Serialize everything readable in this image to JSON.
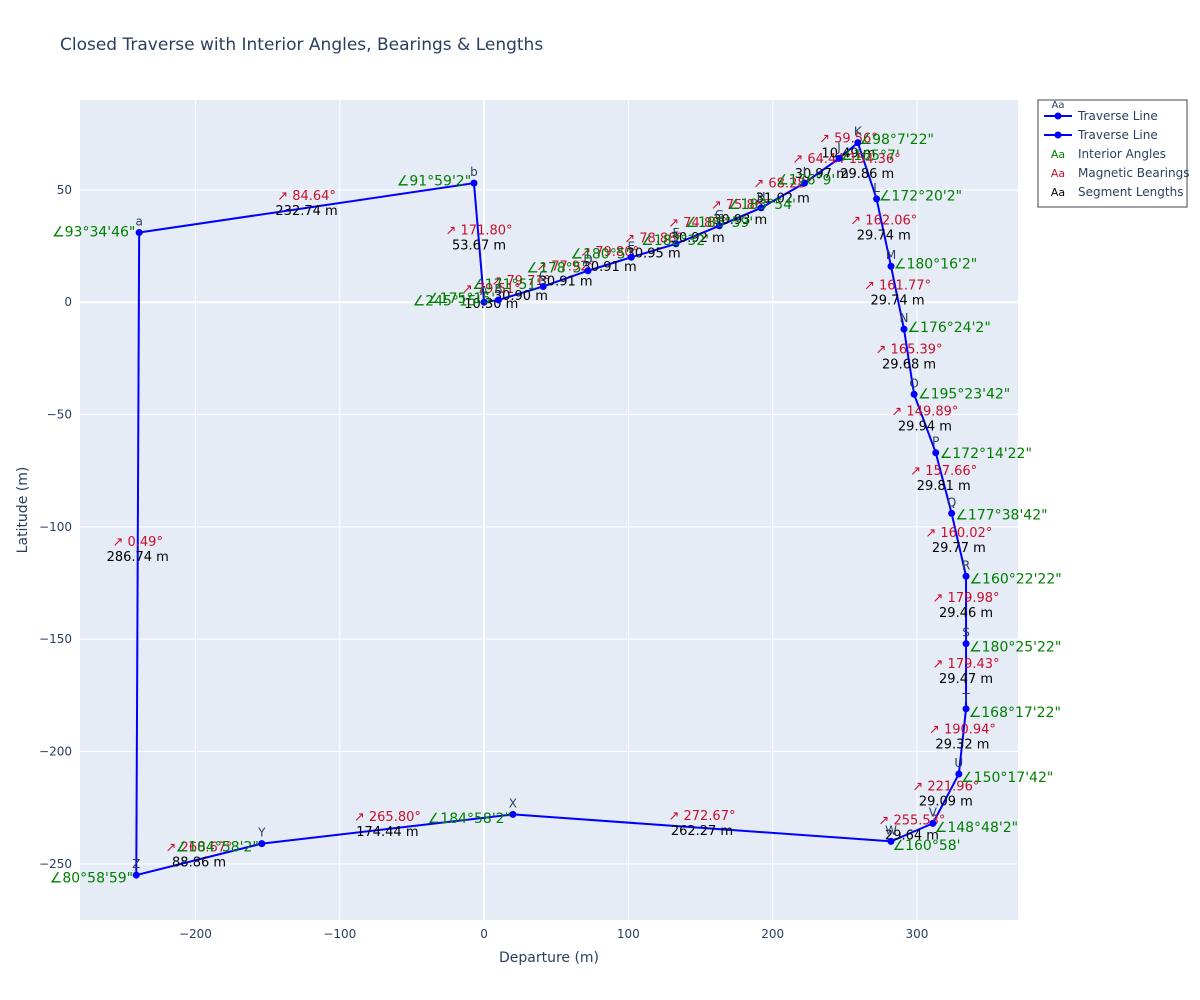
{
  "chart_data": {
    "type": "line",
    "title": "Closed Traverse with Interior Angles, Bearings & Lengths",
    "xlabel": "Departure (m)",
    "ylabel": "Latitude (m)",
    "xlim": [
      -280,
      370
    ],
    "ylim": [
      -275,
      90
    ],
    "xticks": [
      -200,
      -100,
      0,
      100,
      200,
      300
    ],
    "yticks": [
      -250,
      -200,
      -150,
      -100,
      -50,
      0,
      50
    ],
    "xtick_labels": [
      "−200",
      "−100",
      "0",
      "100",
      "200",
      "300"
    ],
    "ytick_labels": [
      "−250",
      "−200",
      "−150",
      "−100",
      "−50",
      "0",
      "50"
    ],
    "grid": true,
    "legend_position": "top-right",
    "legend": {
      "group_marker": "Aa",
      "entries": [
        {
          "label": "Traverse Line",
          "kind": "line",
          "color": "#0000ff"
        },
        {
          "label": "Traverse Line",
          "kind": "line",
          "color": "#0000ff"
        },
        {
          "label": "Interior Angles",
          "kind": "text",
          "marker": "Aa",
          "color": "#008000"
        },
        {
          "label": "Magnetic Bearings",
          "kind": "text",
          "marker": "Aa",
          "color": "#c8102e"
        },
        {
          "label": "Segment Lengths",
          "kind": "text",
          "marker": "Aa",
          "color": "#000000"
        }
      ]
    },
    "line_color": "#0000ff",
    "points": [
      {
        "name": "A",
        "x": 0,
        "y": 0,
        "angle": "∠245°15'"
      },
      {
        "name": "B",
        "x": 10,
        "y": 1,
        "angle": "∠175°15'"
      },
      {
        "name": "C",
        "x": 41,
        "y": 7,
        "angle": "∠171°51'"
      },
      {
        "name": "D",
        "x": 72,
        "y": 14,
        "angle": "∠178°5'"
      },
      {
        "name": "E",
        "x": 102,
        "y": 20,
        "angle": "∠180°5'"
      },
      {
        "name": "F",
        "x": 133,
        "y": 26,
        "angle": "∠182°32'"
      },
      {
        "name": "G",
        "x": 163,
        "y": 34,
        "angle": "∠186°59'"
      },
      {
        "name": "H",
        "x": 192,
        "y": 42,
        "angle": "∠183°54'"
      },
      {
        "name": "I",
        "x": 222,
        "y": 53,
        "angle": "∠176°9'"
      },
      {
        "name": "J",
        "x": 246,
        "y": 64,
        "angle": "∠165°7'"
      },
      {
        "name": "K",
        "x": 259,
        "y": 71,
        "angle": "∠98°7'22\""
      },
      {
        "name": "L",
        "x": 272,
        "y": 46,
        "angle": "∠172°20'2\""
      },
      {
        "name": "M",
        "x": 282,
        "y": 16,
        "angle": "∠180°16'2\""
      },
      {
        "name": "N",
        "x": 291,
        "y": -12,
        "angle": "∠176°24'2\""
      },
      {
        "name": "O",
        "x": 298,
        "y": -41,
        "angle": "∠195°23'42\""
      },
      {
        "name": "P",
        "x": 313,
        "y": -67,
        "angle": "∠172°14'22\""
      },
      {
        "name": "Q",
        "x": 324,
        "y": -94,
        "angle": "∠177°38'42\""
      },
      {
        "name": "R",
        "x": 334,
        "y": -122,
        "angle": "∠160°22'22\""
      },
      {
        "name": "S",
        "x": 334,
        "y": -152,
        "angle": "∠180°25'22\""
      },
      {
        "name": "T",
        "x": 334,
        "y": -181,
        "angle": "∠168°17'22\""
      },
      {
        "name": "U",
        "x": 329,
        "y": -210,
        "angle": "∠150°17'42\""
      },
      {
        "name": "V",
        "x": 311,
        "y": -232,
        "angle": "∠148°48'2\""
      },
      {
        "name": "W",
        "x": 282,
        "y": -240,
        "angle": "∠160°58'"
      },
      {
        "name": "X",
        "x": 20,
        "y": -228,
        "angle": "∠184°58'2\""
      },
      {
        "name": "Y",
        "x": -154,
        "y": -241,
        "angle": "∠184°58'2\""
      },
      {
        "name": "Z",
        "x": -241,
        "y": -255,
        "angle": "∠80°58'59\""
      },
      {
        "name": "a",
        "x": -239,
        "y": 31,
        "angle": "∠93°34'46\""
      },
      {
        "name": "b",
        "x": -7,
        "y": 53,
        "angle": "∠91°59'2\""
      }
    ],
    "segments": [
      {
        "from": "A",
        "to": "B",
        "bearing": "↗ 79.51°",
        "length": "10.30 m"
      },
      {
        "from": "B",
        "to": "C",
        "bearing": "↗ 79.71°",
        "length": "30.90 m"
      },
      {
        "from": "C",
        "to": "D",
        "bearing": "↗ 77.92°",
        "length": "30.91 m"
      },
      {
        "from": "D",
        "to": "E",
        "bearing": "↗ 79.80°",
        "length": "30.91 m"
      },
      {
        "from": "E",
        "to": "F",
        "bearing": "↗ 78.88°",
        "length": "30.95 m"
      },
      {
        "from": "F",
        "to": "G",
        "bearing": "↗ 74.85°",
        "length": "30.92 m"
      },
      {
        "from": "G",
        "to": "H",
        "bearing": "↗ 75.86°",
        "length": "30.93 m"
      },
      {
        "from": "H",
        "to": "I",
        "bearing": "↗ 68.28°",
        "length": "31.02 m"
      },
      {
        "from": "I",
        "to": "J",
        "bearing": "↗ 64.44°",
        "length": "30.97 m"
      },
      {
        "from": "J",
        "to": "K",
        "bearing": "↗ 59.56°",
        "length": "10.49 m"
      },
      {
        "from": "K",
        "to": "L",
        "bearing": "↗ 154.36°",
        "length": "29.86 m"
      },
      {
        "from": "L",
        "to": "M",
        "bearing": "↗ 162.06°",
        "length": "29.74 m"
      },
      {
        "from": "M",
        "to": "N",
        "bearing": "↗ 161.77°",
        "length": "29.74 m"
      },
      {
        "from": "N",
        "to": "O",
        "bearing": "↗ 165.39°",
        "length": "29.68 m"
      },
      {
        "from": "O",
        "to": "P",
        "bearing": "↗ 149.89°",
        "length": "29.94 m"
      },
      {
        "from": "P",
        "to": "Q",
        "bearing": "↗ 157.66°",
        "length": "29.81 m"
      },
      {
        "from": "Q",
        "to": "R",
        "bearing": "↗ 160.02°",
        "length": "29.77 m"
      },
      {
        "from": "R",
        "to": "S",
        "bearing": "↗ 179.98°",
        "length": "29.46 m"
      },
      {
        "from": "S",
        "to": "T",
        "bearing": "↗ 179.43°",
        "length": "29.47 m"
      },
      {
        "from": "T",
        "to": "U",
        "bearing": "↗ 190.94°",
        "length": "29.32 m"
      },
      {
        "from": "U",
        "to": "V",
        "bearing": "↗ 221.96°",
        "length": "29.09 m"
      },
      {
        "from": "V",
        "to": "W",
        "bearing": "↗ 255.53°",
        "length": "29.64 m"
      },
      {
        "from": "W",
        "to": "X",
        "bearing": "↗ 272.67°",
        "length": "262.27 m"
      },
      {
        "from": "X",
        "to": "Y",
        "bearing": "↗ 265.80°",
        "length": "174.44 m"
      },
      {
        "from": "Y",
        "to": "Z",
        "bearing": "↗ 260.67°",
        "length": "88.86 m"
      },
      {
        "from": "Z",
        "to": "a",
        "bearing": "↗ 0.49°",
        "length": "286.74 m"
      },
      {
        "from": "a",
        "to": "b",
        "bearing": "↗ 84.64°",
        "length": "232.74 m"
      },
      {
        "from": "b",
        "to": "A",
        "bearing": "↗ 171.80°",
        "length": "53.67 m"
      }
    ]
  }
}
